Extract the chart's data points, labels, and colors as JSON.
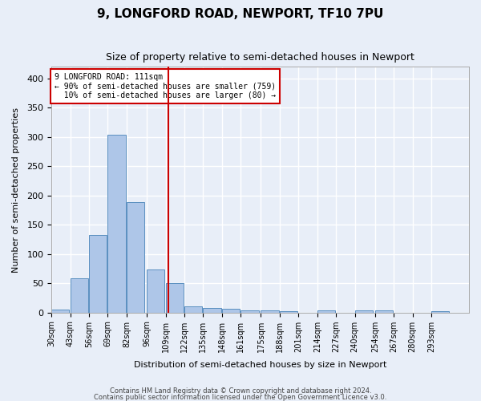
{
  "title": "9, LONGFORD ROAD, NEWPORT, TF10 7PU",
  "subtitle": "Size of property relative to semi-detached houses in Newport",
  "xlabel": "Distribution of semi-detached houses by size in Newport",
  "ylabel": "Number of semi-detached properties",
  "bar_color": "#aec6e8",
  "bar_edge_color": "#5a8fc0",
  "background_color": "#e8eef8",
  "grid_color": "#ffffff",
  "annotation_line_color": "#cc0000",
  "annotation_box_color": "#cc0000",
  "property_size": 111,
  "pct_smaller": 90,
  "num_smaller": 759,
  "pct_larger": 10,
  "num_larger": 80,
  "bins": [
    30,
    43,
    56,
    69,
    82,
    96,
    109,
    122,
    135,
    148,
    161,
    175,
    188,
    201,
    214,
    227,
    240,
    254,
    267,
    280,
    293,
    306
  ],
  "bin_labels": [
    "30sqm",
    "43sqm",
    "56sqm",
    "69sqm",
    "82sqm",
    "96sqm",
    "109sqm",
    "122sqm",
    "135sqm",
    "148sqm",
    "161sqm",
    "175sqm",
    "188sqm",
    "201sqm",
    "214sqm",
    "227sqm",
    "240sqm",
    "254sqm",
    "267sqm",
    "280sqm",
    "293sqm"
  ],
  "counts": [
    5,
    58,
    132,
    304,
    189,
    74,
    50,
    11,
    8,
    6,
    3,
    3,
    2,
    0,
    3,
    0,
    4,
    3,
    0,
    0,
    2
  ],
  "ylim": [
    0,
    420
  ],
  "yticks": [
    0,
    50,
    100,
    150,
    200,
    250,
    300,
    350,
    400
  ],
  "footnote1": "Contains HM Land Registry data © Crown copyright and database right 2024.",
  "footnote2": "Contains public sector information licensed under the Open Government Licence v3.0."
}
